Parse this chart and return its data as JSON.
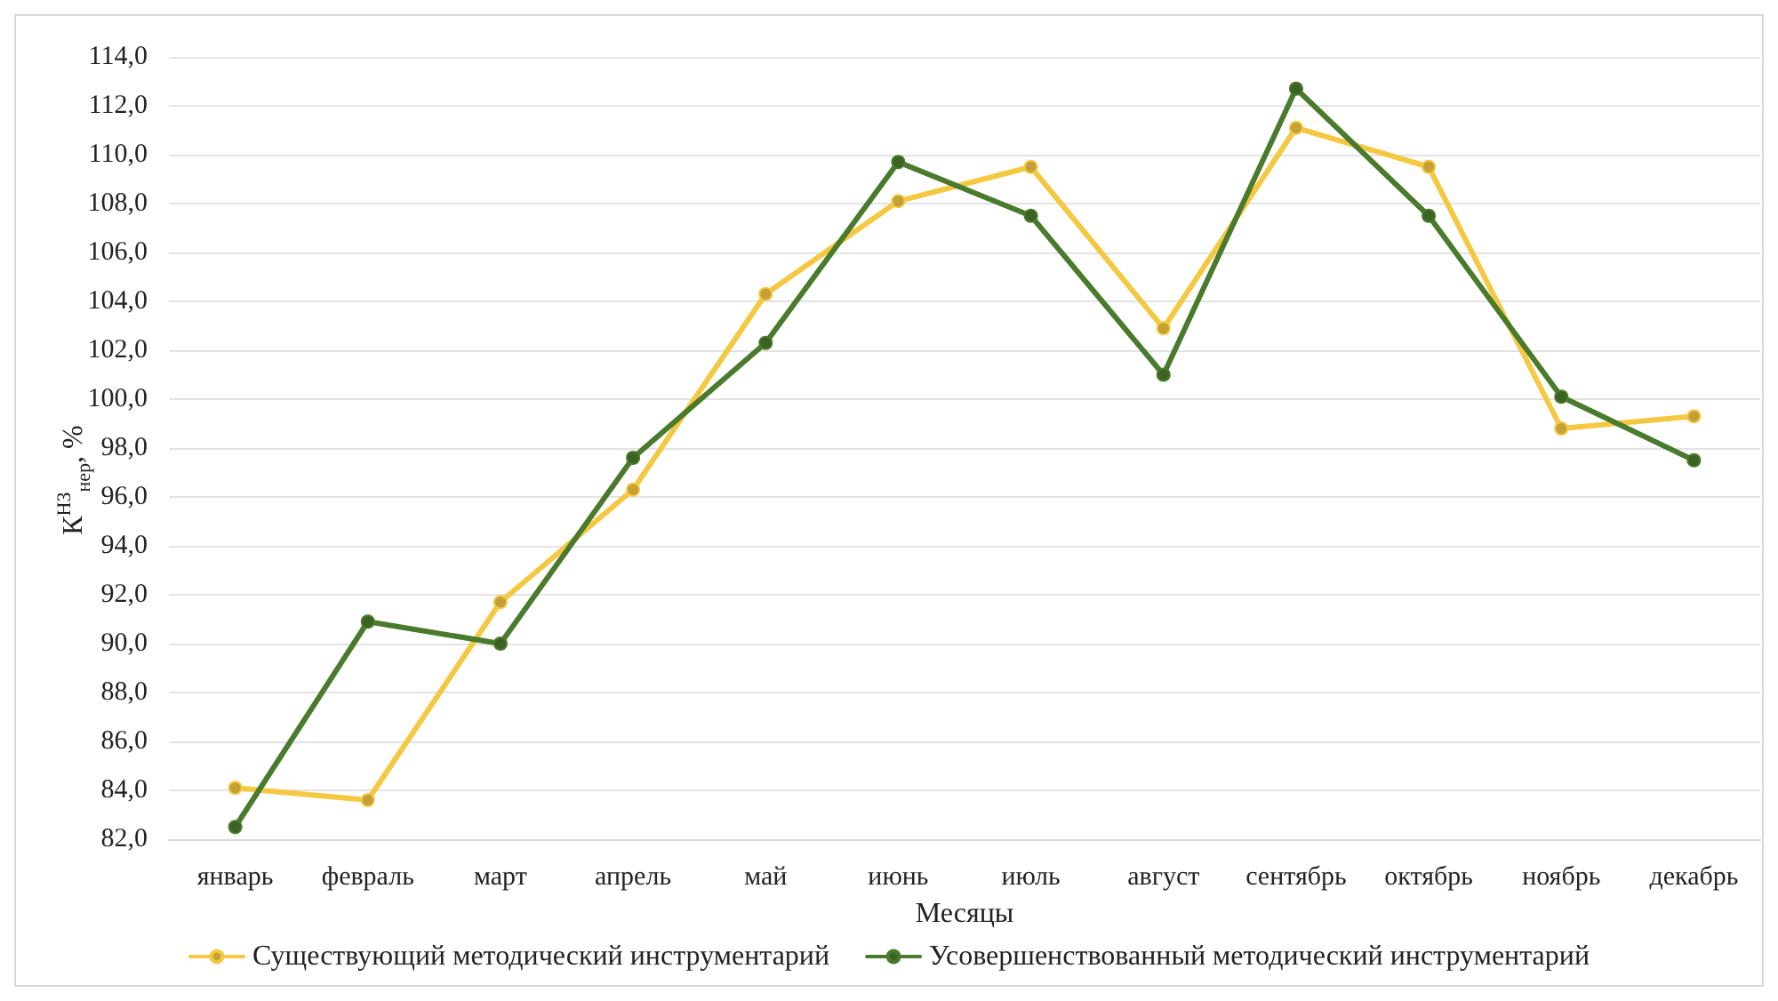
{
  "chart_data": {
    "type": "line",
    "xlabel": "Месяцы",
    "ylabel": "К$^{НЗ}$$_{нер}$, %",
    "categories": [
      "январь",
      "февраль",
      "март",
      "апрель",
      "май",
      "июнь",
      "июль",
      "август",
      "сентябрь",
      "октябрь",
      "ноябрь",
      "декабрь"
    ],
    "series": [
      {
        "name": "Существующий методический инструментарий",
        "color": "#f5c842",
        "values": [
          84.1,
          83.6,
          91.7,
          96.3,
          104.3,
          108.1,
          109.5,
          102.9,
          111.1,
          109.5,
          98.8,
          99.3
        ]
      },
      {
        "name": "Усовершенствованный методический инструментарий",
        "color": "#4a7a2c",
        "values": [
          82.5,
          90.9,
          90.0,
          97.6,
          102.3,
          109.7,
          107.5,
          101.0,
          112.7,
          107.5,
          100.1,
          97.5
        ]
      }
    ],
    "ylim": [
      82,
      114
    ],
    "yticks": [
      {
        "value": 82,
        "label": "82,0"
      },
      {
        "value": 84,
        "label": "84,0"
      },
      {
        "value": 86,
        "label": "86,0"
      },
      {
        "value": 88,
        "label": "88,0"
      },
      {
        "value": 90,
        "label": "90,0"
      },
      {
        "value": 92,
        "label": "92,0"
      },
      {
        "value": 94,
        "label": "94,0"
      },
      {
        "value": 96,
        "label": "96,0"
      },
      {
        "value": 98,
        "label": "98,0"
      },
      {
        "value": 100,
        "label": "100,0"
      },
      {
        "value": 102,
        "label": "102,0"
      },
      {
        "value": 104,
        "label": "104,0"
      },
      {
        "value": 106,
        "label": "106,0"
      },
      {
        "value": 108,
        "label": "108,0"
      },
      {
        "value": 110,
        "label": "110,0"
      },
      {
        "value": 112,
        "label": "112,0"
      },
      {
        "value": 114,
        "label": "114,0"
      }
    ],
    "grid": "y",
    "legend": "bottom",
    "marker": "circle",
    "line_style": "solid"
  }
}
